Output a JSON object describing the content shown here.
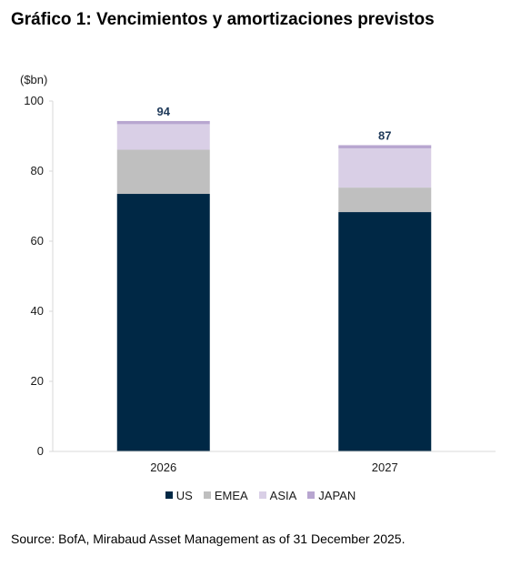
{
  "title": "Gráfico 1: Vencimientos y amortizaciones previstos",
  "source": "Source: BofA, Mirabaud Asset Management as of 31 December 2025.",
  "chart_data": {
    "type": "bar",
    "stacked": true,
    "ylabel": "($bn)",
    "ylim": [
      0,
      100
    ],
    "yticks": [
      0,
      20,
      40,
      60,
      80,
      100
    ],
    "categories": [
      "2026",
      "2027"
    ],
    "totals": [
      "94",
      "87"
    ],
    "series": [
      {
        "name": "US",
        "color": "#002845",
        "values": [
          73.5,
          68.3
        ]
      },
      {
        "name": "EMEA",
        "color": "#bfbfbf",
        "values": [
          12.6,
          7.0
        ]
      },
      {
        "name": "ASIA",
        "color": "#d9cfe6",
        "values": [
          7.3,
          11.2
        ]
      },
      {
        "name": "JAPAN",
        "color": "#b8a6d0",
        "values": [
          0.9,
          0.9
        ]
      }
    ],
    "legend_position": "bottom",
    "grid": false
  }
}
